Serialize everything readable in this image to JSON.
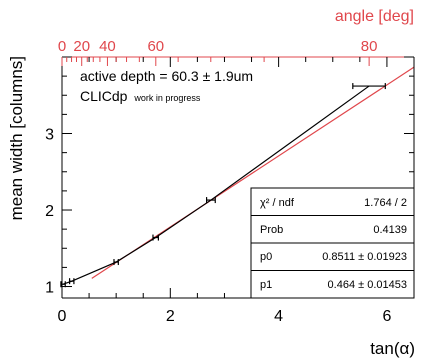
{
  "chart_data": {
    "type": "scatter",
    "xlabel": "tan(α)",
    "ylabel": "mean width [columns]",
    "xlim": [
      0,
      6.5
    ],
    "ylim": [
      0.85,
      4.0
    ],
    "x_ticks": [
      0,
      2,
      4,
      6
    ],
    "y_ticks": [
      1,
      2,
      3
    ],
    "top_axis": {
      "label": "angle [deg]",
      "ticks": [
        0,
        20,
        40,
        60,
        80
      ],
      "color": "#e0474c"
    },
    "annotations": {
      "depth": "active depth = 60.3 ± 1.9um",
      "experiment": "CLICdp",
      "status": "work in progress"
    },
    "data_series": {
      "color": "#000000",
      "points": [
        {
          "x": 0.02,
          "y": 1.03,
          "xerr": 0.04
        },
        {
          "x": 0.18,
          "y": 1.07,
          "xerr": 0.04
        },
        {
          "x": 1.0,
          "y": 1.32,
          "xerr": 0.04
        },
        {
          "x": 1.73,
          "y": 1.64,
          "xerr": 0.05
        },
        {
          "x": 2.75,
          "y": 2.13,
          "xerr": 0.08
        },
        {
          "x": 5.67,
          "y": 3.62,
          "xerr": 0.3
        }
      ]
    },
    "fit": {
      "color": "#e0474c",
      "x_range": [
        0.55,
        6.5
      ],
      "stats": {
        "chi2_label": "χ² / ndf",
        "chi2_value": "1.764 / 2",
        "prob_label": "Prob",
        "prob_value": "0.4139",
        "p0_label": "p0",
        "p0_value": "0.8511 ± 0.01923",
        "p1_label": "p1",
        "p1_value": "0.464 ± 0.01453"
      },
      "p0": 0.8511,
      "p1": 0.464
    }
  }
}
